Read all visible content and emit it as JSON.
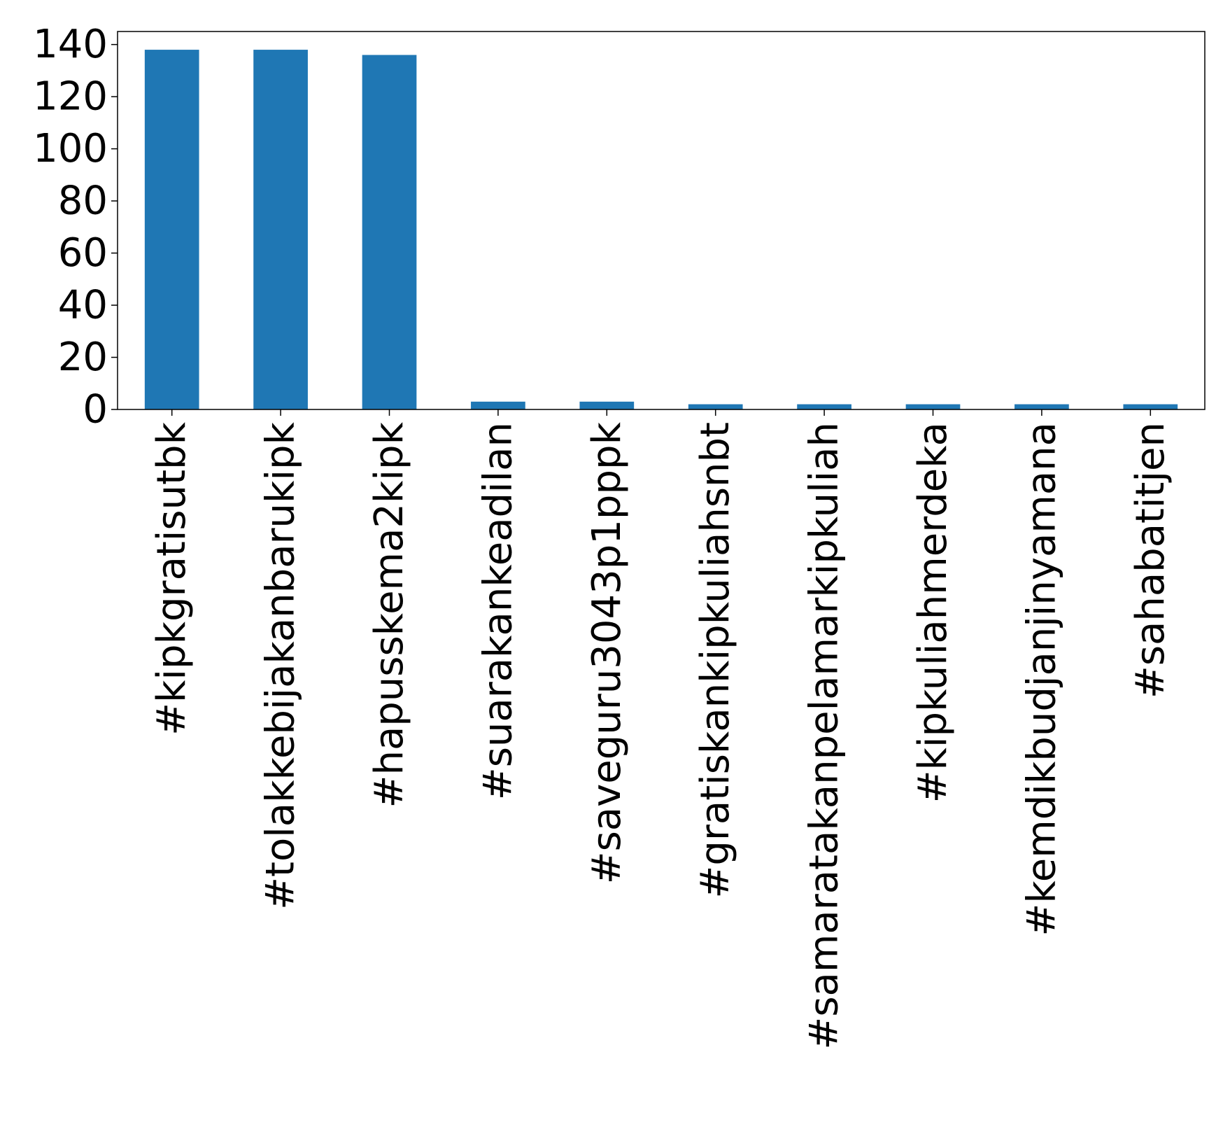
{
  "chart_data": {
    "type": "bar",
    "categories": [
      "#kipkgratisutbk",
      "#tolakkebijakanbarukipk",
      "#hapusskema2kipk",
      "#suarakankeadilan",
      "#saveguru3043p1pppk",
      "#gratiskankipkuliahsnbt",
      "#samaratakanpelamarkipkuliah",
      "#kipkuliahmerdeka",
      "#kemdikbudjanjinyamana",
      "#sahabatitjen"
    ],
    "values": [
      138,
      138,
      136,
      3,
      3,
      2,
      2,
      2,
      2,
      2
    ],
    "ylim": [
      0,
      145
    ],
    "yticks": [
      0,
      20,
      40,
      60,
      80,
      100,
      120,
      140
    ],
    "ytick_labels": [
      "0",
      "20",
      "40",
      "60",
      "80",
      "100",
      "120",
      "140"
    ],
    "title": "",
    "xlabel": "",
    "ylabel": "",
    "bar_color": "#1f77b4",
    "grid": false,
    "legend": "none"
  }
}
